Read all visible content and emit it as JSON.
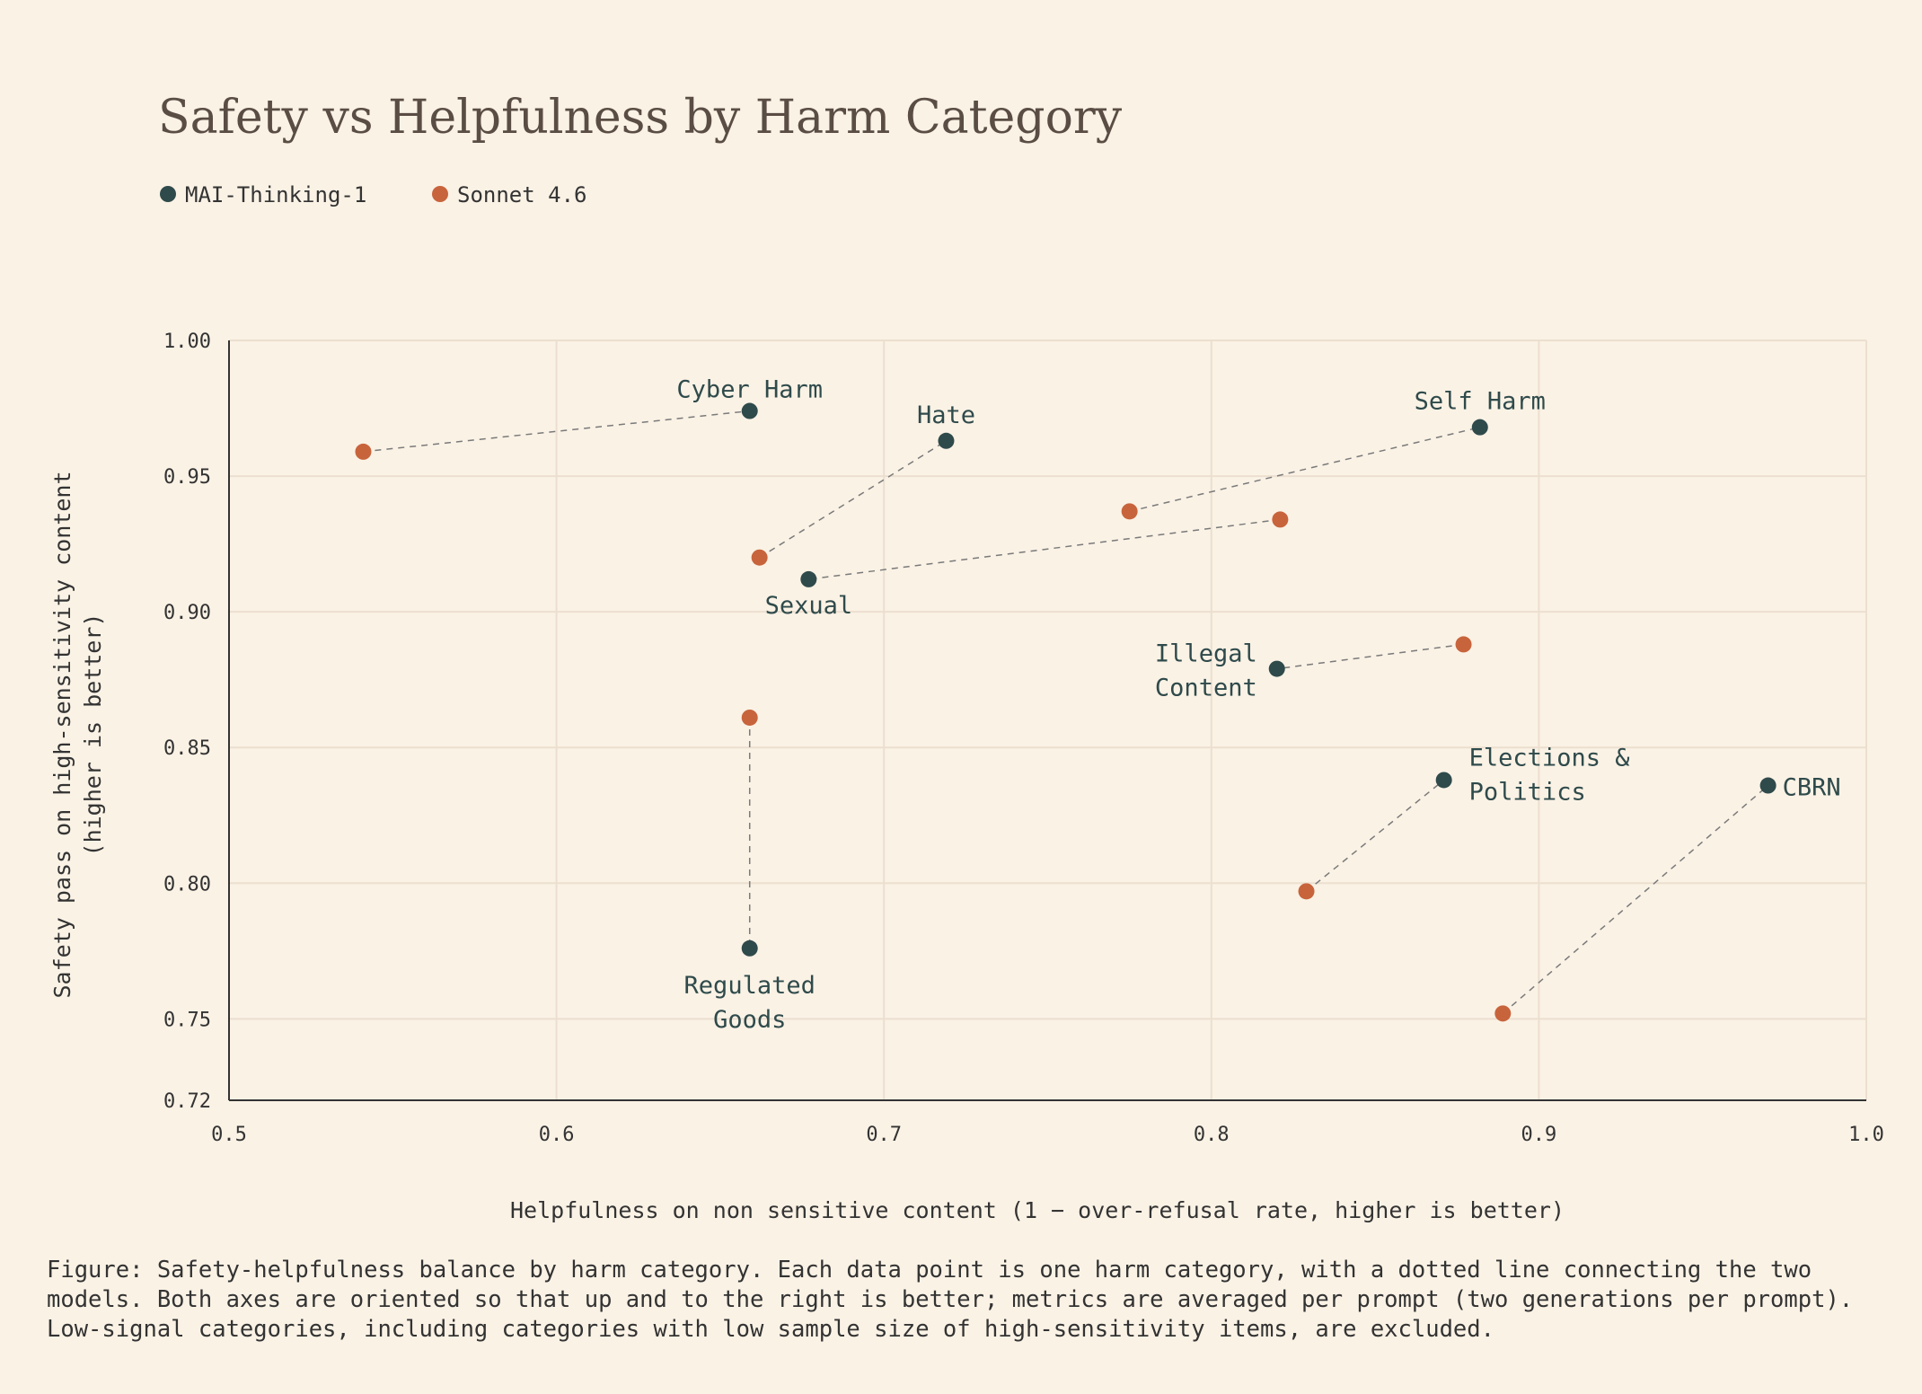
{
  "chart_data": {
    "type": "scatter",
    "title": "Safety vs Helpfulness by Harm Category",
    "xlabel": "Helpfulness on non sensitive content (1 − over-refusal rate, higher is better)",
    "ylabel_lines": [
      "Safety pass on high-sensitivity content",
      "(higher is better)"
    ],
    "xlim": [
      0.5,
      1.0
    ],
    "ylim": [
      0.72,
      1.0
    ],
    "x_ticks": [
      "0.5",
      "0.6",
      "0.7",
      "0.8",
      "0.9",
      "1.0"
    ],
    "y_ticks": [
      "1.00",
      "0.95",
      "0.90",
      "0.85",
      "0.80",
      "0.75",
      "0.72"
    ],
    "grid": true,
    "legend_position": "top-left",
    "series": [
      {
        "name": "MAI-Thinking-1",
        "color": "#2f4a4b"
      },
      {
        "name": "Sonnet 4.6",
        "color": "#c8643c"
      }
    ],
    "categories": [
      {
        "name": "Cyber Harm",
        "label_lines": [
          "Cyber Harm"
        ],
        "mai": [
          0.659,
          0.974
        ],
        "sonnet": [
          0.541,
          0.959
        ]
      },
      {
        "name": "Hate",
        "label_lines": [
          "Hate"
        ],
        "mai": [
          0.719,
          0.963
        ],
        "sonnet": [
          0.662,
          0.92
        ]
      },
      {
        "name": "Self Harm",
        "label_lines": [
          "Self Harm"
        ],
        "mai": [
          0.882,
          0.968
        ],
        "sonnet": [
          0.775,
          0.937
        ]
      },
      {
        "name": "Sexual",
        "label_lines": [
          "Sexual"
        ],
        "mai": [
          0.677,
          0.912
        ],
        "sonnet": [
          0.821,
          0.934
        ]
      },
      {
        "name": "Illegal Content",
        "label_lines": [
          "Illegal",
          "Content"
        ],
        "mai": [
          0.82,
          0.879
        ],
        "sonnet": [
          0.877,
          0.888
        ]
      },
      {
        "name": "Regulated Goods",
        "label_lines": [
          "Regulated",
          "Goods"
        ],
        "mai": [
          0.659,
          0.776
        ],
        "sonnet": [
          0.659,
          0.861
        ]
      },
      {
        "name": "Elections & Politics",
        "label_lines": [
          "Elections &",
          "Politics"
        ],
        "mai": [
          0.871,
          0.838
        ],
        "sonnet": [
          0.829,
          0.797
        ]
      },
      {
        "name": "CBRN",
        "label_lines": [
          "CBRN"
        ],
        "mai": [
          0.97,
          0.836
        ],
        "sonnet": [
          0.889,
          0.752
        ]
      }
    ]
  },
  "caption": "Figure: Safety-helpfulness balance by harm category. Each data point is one harm category, with a dotted line connecting the two models. Both axes are oriented so that up and to the right is better; metrics are averaged per prompt (two generations per prompt). Low-signal categories, including categories with low sample size of high-sensitivity items, are excluded."
}
